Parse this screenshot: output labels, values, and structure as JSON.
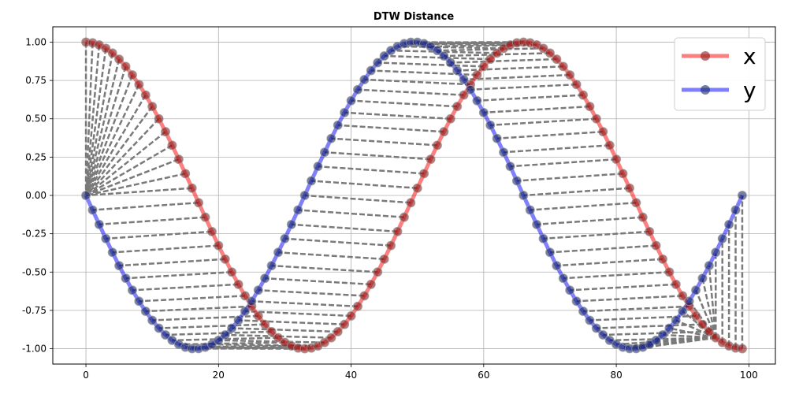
{
  "chart_data": {
    "type": "line",
    "title": "DTW Distance",
    "xlabel": "",
    "ylabel": "",
    "xlim": [
      -5,
      104
    ],
    "ylim": [
      -1.1,
      1.1
    ],
    "x_ticks": [
      "0",
      "20",
      "40",
      "60",
      "80",
      "100"
    ],
    "y_ticks": [
      "1.00",
      "0.75",
      "0.50",
      "0.25",
      "0.00",
      "-0.25",
      "-0.50",
      "-0.75",
      "-1.00"
    ],
    "grid": true,
    "legend_position": "top-right",
    "series": [
      {
        "name": "x",
        "color": "#ff0000",
        "marker_color": "#8b1a1a",
        "description": "cos curve, 100 samples, from 1.00 at x=0 to min -1.00 near x=33, max 1.00 near x=66, -1.00 at x=99"
      },
      {
        "name": "y",
        "color": "#0000ff",
        "marker_color": "#1a2a6b",
        "description": "sin curve, 100 samples, 0.00 at x=0, min -1.00 near x=16, max 1.00 near x=49, min -1.00 near x=82, 0.00 at x=99"
      }
    ],
    "x": {
      "formula": "cos(2*pi*1.5*i/99)",
      "n": 100
    },
    "y": {
      "formula": "sin(2*pi*1.5*i/99 + pi)",
      "n": 100
    },
    "alignment": {
      "style": "dashed",
      "color": "#7a7a7a",
      "path": "dtw warping path between x and y"
    }
  }
}
